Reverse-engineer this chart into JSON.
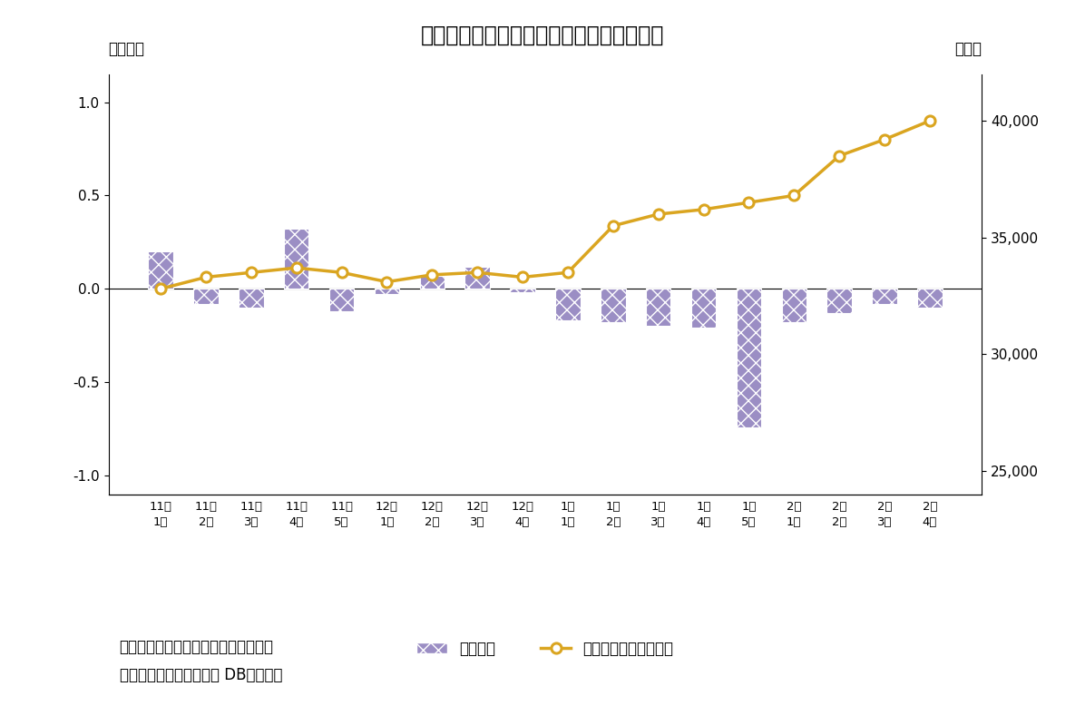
{
  "title": "図表４　信託銀行は２カ月連続の売り越し",
  "categories": [
    "11月\n1週",
    "11月\n2週",
    "11月\n3週",
    "11月\n4週",
    "11月\n5週",
    "12月\n1週",
    "12月\n2週",
    "12月\n3週",
    "12月\n4週",
    "1月\n1週",
    "1月\n2週",
    "1月\n3週",
    "1月\n4週",
    "1月\n5週",
    "2月\n1週",
    "2月\n2週",
    "2月\n3週",
    "2月\n4週"
  ],
  "bar_values": [
    0.2,
    -0.08,
    -0.1,
    0.32,
    -0.12,
    -0.03,
    0.07,
    0.12,
    -0.02,
    -0.17,
    -0.18,
    -0.2,
    -0.21,
    -0.74,
    -0.18,
    -0.13,
    -0.08,
    -0.1
  ],
  "line_values": [
    32800,
    33300,
    33500,
    33700,
    33500,
    33100,
    33400,
    33500,
    33300,
    33500,
    35500,
    36000,
    36200,
    36500,
    36800,
    38500,
    39200,
    40000
  ],
  "bar_color_face": "#9B8EC4",
  "bar_hatch": "xx",
  "bar_edgecolor": "#ffffff",
  "line_color": "#DAA520",
  "marker_color": "white",
  "marker_edge_color": "#DAA520",
  "left_ylabel": "（兆円）",
  "right_ylabel": "（円）",
  "ylim_left": [
    -1.1,
    1.15
  ],
  "ylim_right": [
    24000,
    42000
  ],
  "yticks_left": [
    -1.0,
    -0.5,
    0.0,
    0.5,
    1.0
  ],
  "yticks_right": [
    25000,
    30000,
    35000,
    40000
  ],
  "legend_bar": "信託銀行",
  "legend_line": "日経平均株価〈右軸〉",
  "note1": "（注）個人の現物と先物の合計、週次",
  "note2": "（資料）ニッセイ基礎研 DBから作成",
  "background_color": "#ffffff",
  "title_fontsize": 17,
  "axis_fontsize": 11,
  "note_fontsize": 12
}
